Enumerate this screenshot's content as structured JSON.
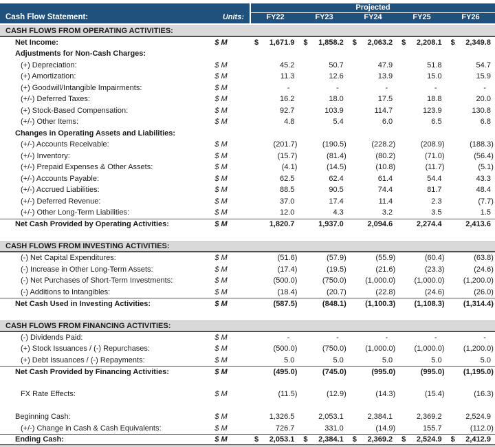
{
  "currency": "$",
  "colors": {
    "header_bg": "#20507C",
    "header_text": "#FFFFFF",
    "section_bg": "#D9D9D9"
  },
  "header": {
    "title": "Cash Flow Statement:",
    "units_label": "Units:",
    "projected_label": "Projected",
    "columns": [
      "FY22",
      "FY23",
      "FY24",
      "FY25",
      "FY26"
    ]
  },
  "rows": [
    {
      "type": "section",
      "indent": 0,
      "label": "CASH FLOWS FROM OPERATING ACTIVITIES:"
    },
    {
      "type": "data",
      "indent": 1,
      "bold": true,
      "dollar": true,
      "label": "Net Income:",
      "units": "$ M",
      "values": [
        "1,671.9",
        "1,858.2",
        "2,063.2",
        "2,208.1",
        "2,349.8"
      ]
    },
    {
      "type": "subheader",
      "indent": 1,
      "label": "Adjustments for Non-Cash Charges:"
    },
    {
      "type": "data",
      "indent": 2,
      "label": "(+) Depreciation:",
      "units": "$ M",
      "values": [
        "45.2",
        "50.7",
        "47.9",
        "51.8",
        "54.7"
      ]
    },
    {
      "type": "data",
      "indent": 2,
      "label": "(+) Amortization:",
      "units": "$ M",
      "values": [
        "11.3",
        "12.6",
        "13.9",
        "15.0",
        "15.9"
      ]
    },
    {
      "type": "data",
      "indent": 2,
      "label": "(+) Goodwill/Intangible Impairments:",
      "units": "$ M",
      "values": [
        "-",
        "-",
        "-",
        "-",
        "-"
      ]
    },
    {
      "type": "data",
      "indent": 2,
      "label": "(+/-) Deferred Taxes:",
      "units": "$ M",
      "values": [
        "16.2",
        "18.0",
        "17.5",
        "18.8",
        "20.0"
      ]
    },
    {
      "type": "data",
      "indent": 2,
      "label": "(+) Stock-Based Compensation:",
      "units": "$ M",
      "values": [
        "92.7",
        "103.9",
        "114.7",
        "123.9",
        "130.8"
      ]
    },
    {
      "type": "data",
      "indent": 2,
      "label": "(+/-) Other Items:",
      "units": "$ M",
      "values": [
        "4.8",
        "5.4",
        "6.0",
        "6.5",
        "6.8"
      ]
    },
    {
      "type": "subheader",
      "indent": 1,
      "label": "Changes in Operating Assets and Liabilities:"
    },
    {
      "type": "data",
      "indent": 2,
      "label": "(+/-) Accounts Receivable:",
      "units": "$ M",
      "values": [
        "(201.7)",
        "(190.5)",
        "(228.2)",
        "(208.9)",
        "(188.3)"
      ]
    },
    {
      "type": "data",
      "indent": 2,
      "label": "(+/-) Inventory:",
      "units": "$ M",
      "values": [
        "(15.7)",
        "(81.4)",
        "(80.2)",
        "(71.0)",
        "(56.4)"
      ]
    },
    {
      "type": "data",
      "indent": 2,
      "label": "(+/-) Prepaid Expenses & Other Assets:",
      "units": "$ M",
      "values": [
        "(4.1)",
        "(14.5)",
        "(10.8)",
        "(11.7)",
        "(5.1)"
      ]
    },
    {
      "type": "data",
      "indent": 2,
      "label": "(+/-) Accounts Payable:",
      "units": "$ M",
      "values": [
        "62.5",
        "62.4",
        "61.4",
        "54.4",
        "43.3"
      ]
    },
    {
      "type": "data",
      "indent": 2,
      "label": "(+/-) Accrued Liabilities:",
      "units": "$ M",
      "values": [
        "88.5",
        "90.5",
        "74.4",
        "81.7",
        "48.4"
      ]
    },
    {
      "type": "data",
      "indent": 2,
      "label": "(+/-) Deferred Revenue:",
      "units": "$ M",
      "values": [
        "37.0",
        "17.4",
        "11.4",
        "2.3",
        "(7.7)"
      ]
    },
    {
      "type": "data",
      "indent": 2,
      "label": "(+/-) Other Long-Term Liabilities:",
      "units": "$ M",
      "values": [
        "12.0",
        "4.3",
        "3.2",
        "3.5",
        "1.5"
      ]
    },
    {
      "type": "total",
      "indent": 1,
      "label": "Net Cash Provided by Operating Activities:",
      "units": "$ M",
      "values": [
        "1,820.7",
        "1,937.0",
        "2,094.6",
        "2,274.4",
        "2,413.6"
      ]
    },
    {
      "type": "spacer"
    },
    {
      "type": "section",
      "indent": 0,
      "label": "CASH FLOWS FROM INVESTING ACTIVITIES:"
    },
    {
      "type": "data",
      "indent": 2,
      "label": "(-) Net Capital Expenditures:",
      "units": "$ M",
      "values": [
        "(51.6)",
        "(57.9)",
        "(55.9)",
        "(60.4)",
        "(63.8)"
      ]
    },
    {
      "type": "data",
      "indent": 2,
      "label": "(-) Increase in Other Long-Term Assets:",
      "units": "$ M",
      "values": [
        "(17.4)",
        "(19.5)",
        "(21.6)",
        "(23.3)",
        "(24.6)"
      ]
    },
    {
      "type": "data",
      "indent": 2,
      "label": "(-) Net Purchases of Short-Term Investments:",
      "units": "$ M",
      "values": [
        "(500.0)",
        "(750.0)",
        "(1,000.0)",
        "(1,000.0)",
        "(1,200.0)"
      ]
    },
    {
      "type": "data",
      "indent": 2,
      "label": "(-) Additions to Intangibles:",
      "units": "$ M",
      "values": [
        "(18.4)",
        "(20.7)",
        "(22.8)",
        "(24.6)",
        "(26.0)"
      ]
    },
    {
      "type": "total",
      "indent": 1,
      "label": "Net Cash Used in Investing Activities:",
      "units": "$ M",
      "values": [
        "(587.5)",
        "(848.1)",
        "(1,100.3)",
        "(1,108.3)",
        "(1,314.4)"
      ]
    },
    {
      "type": "spacer"
    },
    {
      "type": "section",
      "indent": 0,
      "label": "CASH FLOWS FROM FINANCING ACTIVITIES:"
    },
    {
      "type": "data",
      "indent": 2,
      "label": "(-) Dividends Paid:",
      "units": "$ M",
      "values": [
        "-",
        "-",
        "-",
        "-",
        "-"
      ]
    },
    {
      "type": "data",
      "indent": 2,
      "label": "(+) Stock Issuances / (-) Repurchases:",
      "units": "$ M",
      "values": [
        "(500.0)",
        "(750.0)",
        "(1,000.0)",
        "(1,000.0)",
        "(1,200.0)"
      ]
    },
    {
      "type": "data",
      "indent": 2,
      "label": "(+) Debt Issuances / (-) Repayments:",
      "units": "$ M",
      "values": [
        "5.0",
        "5.0",
        "5.0",
        "5.0",
        "5.0"
      ]
    },
    {
      "type": "total",
      "indent": 1,
      "label": "Net Cash Provided by Financing Activities:",
      "units": "$ M",
      "values": [
        "(495.0)",
        "(745.0)",
        "(995.0)",
        "(995.0)",
        "(1,195.0)"
      ]
    },
    {
      "type": "spacer"
    },
    {
      "type": "data",
      "indent": 2,
      "label": "FX Rate Effects:",
      "units": "$ M",
      "values": [
        "(11.5)",
        "(12.9)",
        "(14.3)",
        "(15.4)",
        "(16.3)"
      ]
    },
    {
      "type": "spacer"
    },
    {
      "type": "data",
      "indent": 1,
      "label": "Beginning Cash:",
      "units": "$ M",
      "values": [
        "1,326.5",
        "2,053.1",
        "2,384.1",
        "2,369.2",
        "2,524.9"
      ]
    },
    {
      "type": "data",
      "indent": 2,
      "label": "(+/-) Change in Cash & Cash Equivalents:",
      "units": "$ M",
      "values": [
        "726.7",
        "331.0",
        "(14.9)",
        "155.7",
        "(112.0)"
      ]
    },
    {
      "type": "total",
      "indent": 1,
      "ending": true,
      "dollar": true,
      "label": "Ending Cash:",
      "units": "$ M",
      "values": [
        "2,053.1",
        "2,384.1",
        "2,369.2",
        "2,524.9",
        "2,412.9"
      ]
    }
  ]
}
